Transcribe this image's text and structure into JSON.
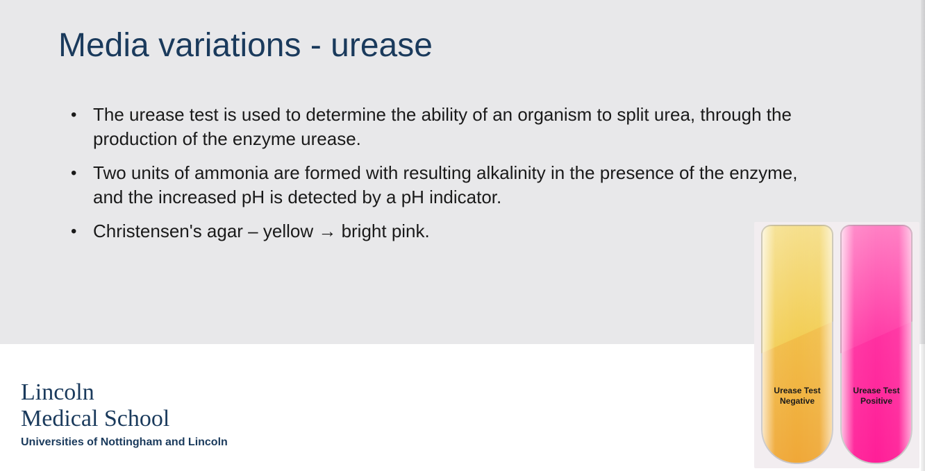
{
  "slide": {
    "title": "Media variations - urease",
    "title_color": "#1a3a5c",
    "background_color": "#e8e8ea",
    "bullets": [
      "The urease test is used to determine the ability of an organism to split urea, through the production of the enzyme urease.",
      "Two units of ammonia are formed with resulting alkalinity in the presence of the enzyme, and the increased pH is detected by a pH indicator.",
      "Christensen's agar – yellow → bright pink."
    ],
    "bullet_fontsize": 26,
    "bullet_color": "#1a1a1a"
  },
  "branding": {
    "line1": "Lincoln",
    "line2": "Medical School",
    "sub": "Universities of Nottingham and Lincoln",
    "color": "#1a3a5c"
  },
  "figure": {
    "type": "infographic",
    "background_color": "#f2edf0",
    "tubes": [
      {
        "id": "negative",
        "fill_color_top": "#f3d158",
        "fill_color_bottom": "#f0a838",
        "slant_color": "#f7e7a8",
        "label_line1": "Urease Test",
        "label_line2": "Negative"
      },
      {
        "id": "positive",
        "fill_color_top": "#ff3fa8",
        "fill_color_bottom": "#ff1f98",
        "slant_color": "#ff9fd2",
        "label_line1": "Urease Test",
        "label_line2": "Positive"
      }
    ],
    "label_fontsize": 12,
    "label_color": "#1a1a1a"
  }
}
